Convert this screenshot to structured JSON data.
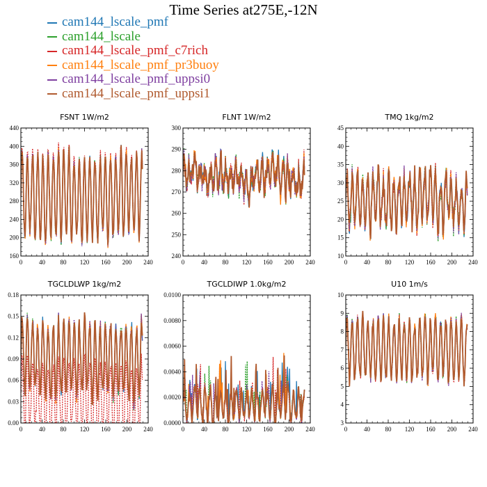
{
  "title": "Time Series at275E,-12N",
  "legend": [
    {
      "label": "cam144_lscale_pmf",
      "color": "#1f77b4"
    },
    {
      "label": "cam144_lscale",
      "color": "#2ca02c"
    },
    {
      "label": "cam144_lscale_pmf_c7rich",
      "color": "#d62728"
    },
    {
      "label": "cam144_lscale_pmf_pr3buoy",
      "color": "#ff7f0e"
    },
    {
      "label": "cam144_lscale_pmf_uppsi0",
      "color": "#7f3fa0"
    },
    {
      "label": "cam144_lscale_pmf_uppsi1",
      "color": "#b05a2e"
    }
  ],
  "chart_data": [
    {
      "type": "line",
      "title": "FSNT   1W/m2",
      "xlim": [
        0,
        240
      ],
      "xticks": [
        "0",
        "40",
        "80",
        "120",
        "160",
        "200",
        "240"
      ],
      "ylim": [
        160,
        440
      ],
      "yticks": [
        "160",
        "200",
        "240",
        "280",
        "320",
        "360",
        "400",
        "440"
      ],
      "grid": false,
      "signal": {
        "mean": 290,
        "amp": 88,
        "period": 9.8,
        "noise": 18,
        "red_offset": 8
      },
      "series_names": [
        "cam144_lscale_pmf",
        "cam144_lscale",
        "cam144_lscale_pmf_c7rich",
        "cam144_lscale_pmf_pr3buoy",
        "cam144_lscale_pmf_uppsi0",
        "cam144_lscale_pmf_uppsi1"
      ]
    },
    {
      "type": "line",
      "title": "FLNT   1W/m2",
      "xlim": [
        0,
        240
      ],
      "xticks": [
        "0",
        "40",
        "80",
        "120",
        "160",
        "200",
        "240"
      ],
      "ylim": [
        240,
        300
      ],
      "yticks": [
        "240",
        "250",
        "260",
        "270",
        "280",
        "290",
        "300"
      ],
      "grid": false,
      "signal": {
        "mean": 277,
        "amp": 5,
        "period": 9.8,
        "noise": 7,
        "red_offset": 0
      },
      "series_names": [
        "cam144_lscale_pmf",
        "cam144_lscale",
        "cam144_lscale_pmf_c7rich",
        "cam144_lscale_pmf_pr3buoy",
        "cam144_lscale_pmf_uppsi0",
        "cam144_lscale_pmf_uppsi1"
      ]
    },
    {
      "type": "line",
      "title": "TMQ   1kg/m2",
      "xlim": [
        0,
        240
      ],
      "xticks": [
        "0",
        "40",
        "80",
        "120",
        "160",
        "200",
        "240"
      ],
      "ylim": [
        10,
        45
      ],
      "yticks": [
        "10",
        "15",
        "20",
        "25",
        "30",
        "35",
        "40",
        "45"
      ],
      "grid": false,
      "signal": {
        "mean": 25,
        "amp": 6,
        "period": 9.8,
        "noise": 4,
        "red_offset": 0
      },
      "series_names": [
        "cam144_lscale_pmf",
        "cam144_lscale",
        "cam144_lscale_pmf_c7rich",
        "cam144_lscale_pmf_pr3buoy",
        "cam144_lscale_pmf_uppsi0",
        "cam144_lscale_pmf_uppsi1"
      ]
    },
    {
      "type": "line",
      "title": "TGCLDLWP   1kg/m2",
      "xlim": [
        0,
        240
      ],
      "xticks": [
        "0",
        "40",
        "80",
        "120",
        "160",
        "200",
        "240"
      ],
      "ylim": [
        0,
        0.18
      ],
      "yticks": [
        "0.00",
        "0.03",
        "0.06",
        "0.09",
        "0.12",
        "0.15",
        "0.18"
      ],
      "grid": false,
      "signal": {
        "mean": 0.09,
        "amp": 0.05,
        "period": 9.8,
        "noise": 0.015,
        "red_offset": -0.055
      },
      "series_names": [
        "cam144_lscale_pmf",
        "cam144_lscale",
        "cam144_lscale_pmf_c7rich",
        "cam144_lscale_pmf_pr3buoy",
        "cam144_lscale_pmf_uppsi0",
        "cam144_lscale_pmf_uppsi1"
      ]
    },
    {
      "type": "line",
      "title": "TGCLDIWP   1.0kg/m2",
      "xlim": [
        0,
        240
      ],
      "xticks": [
        "0",
        "40",
        "80",
        "120",
        "160",
        "200",
        "240"
      ],
      "ylim": [
        0,
        0.01
      ],
      "yticks": [
        "0.0000",
        "0.0020",
        "0.0040",
        "0.0060",
        "0.0080",
        "0.0100"
      ],
      "grid": false,
      "signal": {
        "mean": 0.0014,
        "amp": 0.0011,
        "period": 9.8,
        "noise": 0.0006,
        "red_offset": 0,
        "spiky": true
      },
      "series_names": [
        "cam144_lscale_pmf",
        "cam144_lscale",
        "cam144_lscale_pmf_c7rich",
        "cam144_lscale_pmf_pr3buoy",
        "cam144_lscale_pmf_uppsi0",
        "cam144_lscale_pmf_uppsi1"
      ]
    },
    {
      "type": "line",
      "title": "U10   1m/s",
      "xlim": [
        0,
        240
      ],
      "xticks": [
        "0",
        "40",
        "80",
        "120",
        "160",
        "200",
        "240"
      ],
      "ylim": [
        3,
        10
      ],
      "yticks": [
        "3",
        "4",
        "5",
        "6",
        "7",
        "8",
        "9",
        "10"
      ],
      "grid": false,
      "signal": {
        "mean": 7,
        "amp": 1.6,
        "period": 9.8,
        "noise": 0.5,
        "red_offset": 0
      },
      "series_names": [
        "cam144_lscale_pmf",
        "cam144_lscale",
        "cam144_lscale_pmf_c7rich",
        "cam144_lscale_pmf_pr3buoy",
        "cam144_lscale_pmf_uppsi0",
        "cam144_lscale_pmf_uppsi1"
      ]
    }
  ]
}
